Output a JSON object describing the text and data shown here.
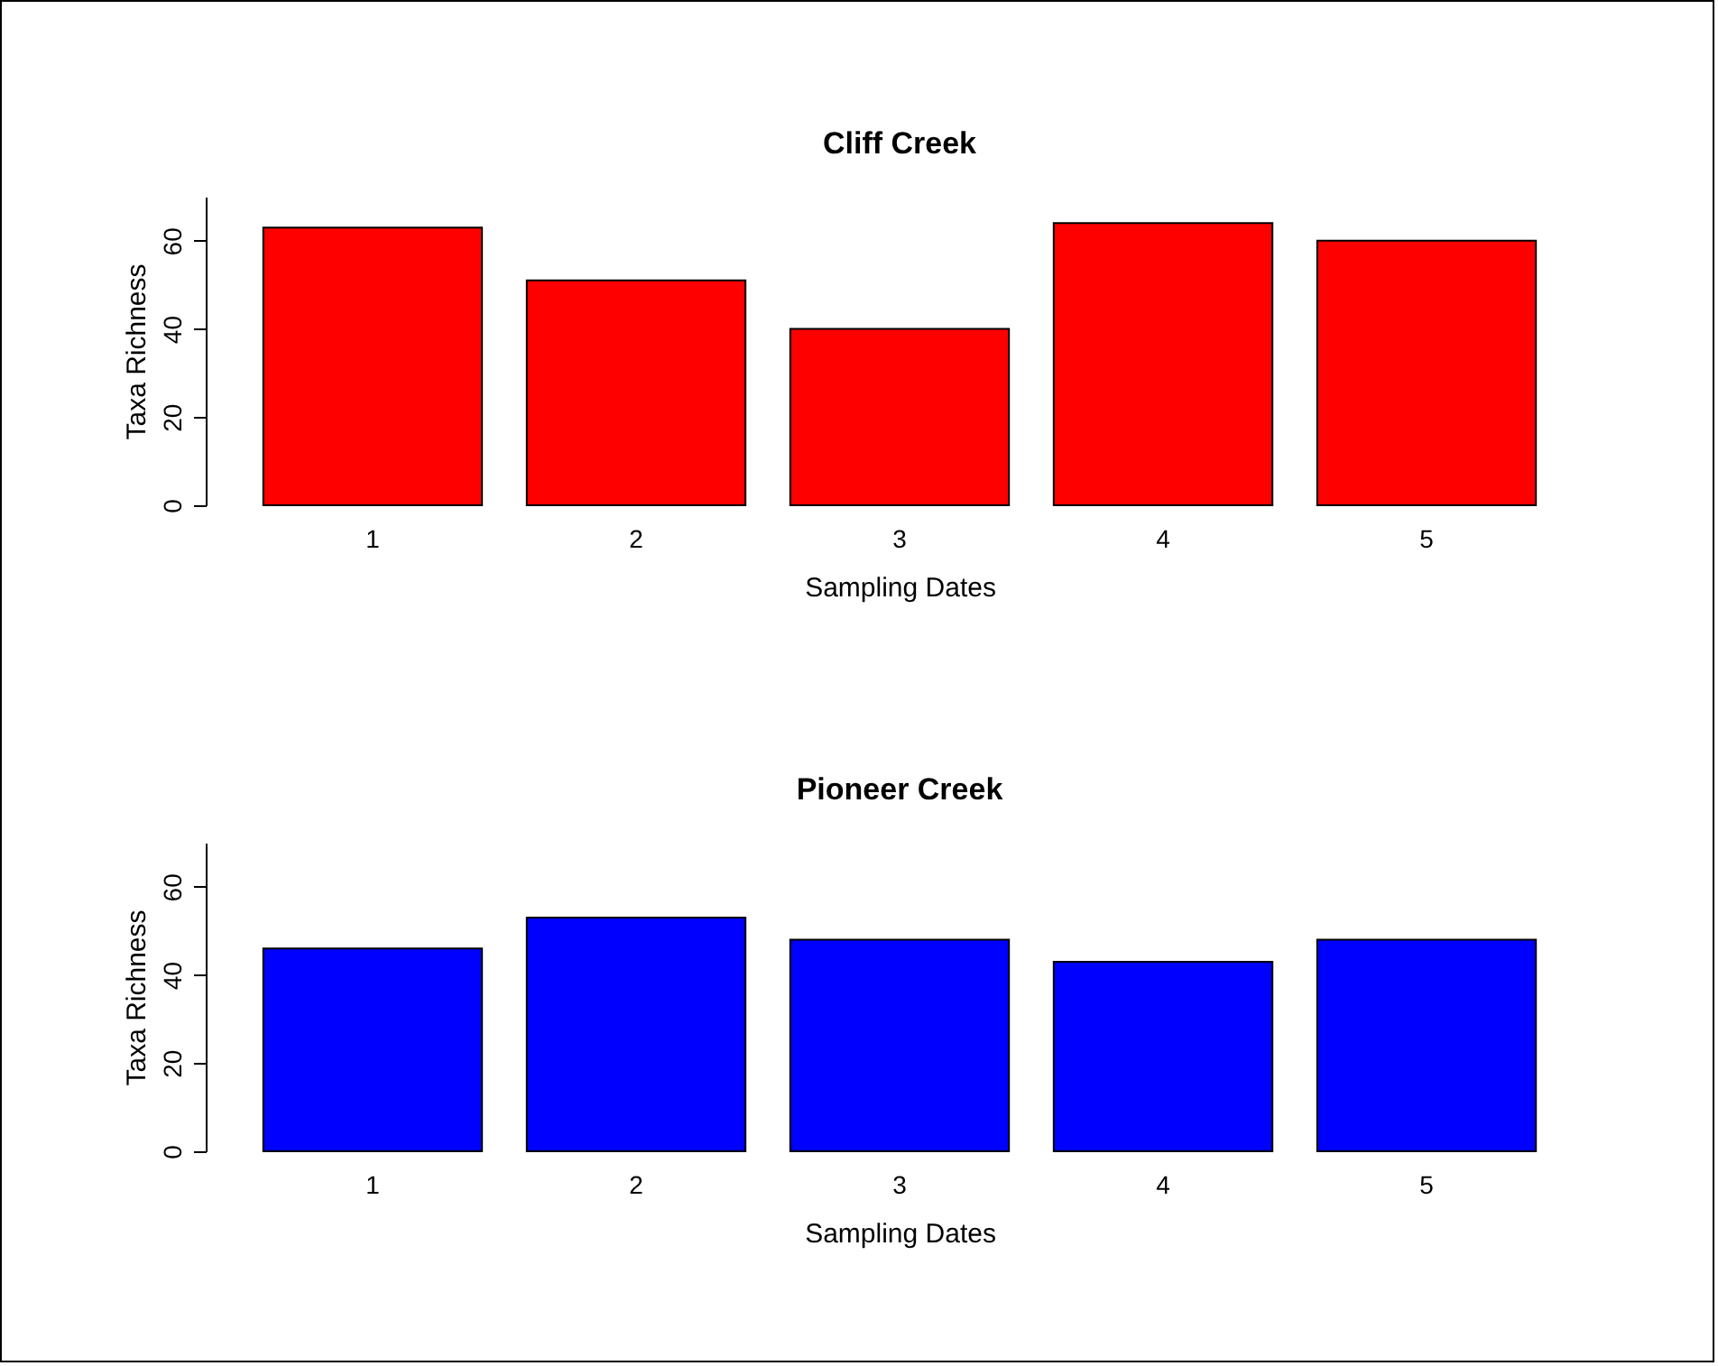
{
  "chart_data": [
    {
      "type": "bar",
      "title": "Cliff Creek",
      "xlabel": "Sampling Dates",
      "ylabel": "Taxa Richness",
      "categories": [
        "1",
        "2",
        "3",
        "4",
        "5"
      ],
      "values": [
        63,
        51,
        40,
        64,
        60
      ],
      "color": "#ff0000",
      "ylim": [
        0,
        70
      ],
      "yticks": [
        0,
        20,
        40,
        60
      ],
      "grid": false
    },
    {
      "type": "bar",
      "title": "Pioneer Creek",
      "xlabel": "Sampling Dates",
      "ylabel": "Taxa Richness",
      "categories": [
        "1",
        "2",
        "3",
        "4",
        "5"
      ],
      "values": [
        46,
        53,
        48,
        43,
        48
      ],
      "color": "#0000ff",
      "ylim": [
        0,
        70
      ],
      "yticks": [
        0,
        20,
        40,
        60
      ],
      "grid": false
    }
  ]
}
